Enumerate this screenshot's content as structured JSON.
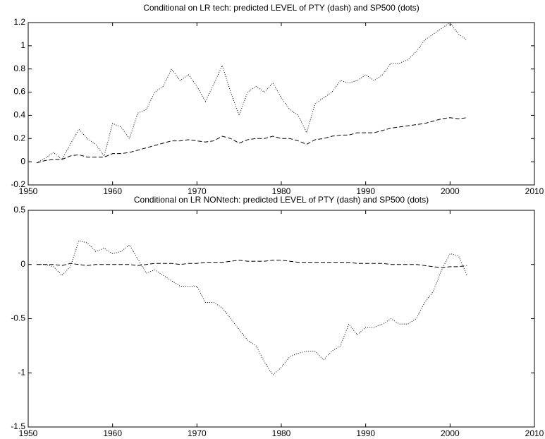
{
  "chart_data": [
    {
      "type": "line",
      "title": "Conditional on LR tech: predicted LEVEL of PTY (dash) and SP500 (dots)",
      "x": [
        1951,
        1952,
        1953,
        1954,
        1955,
        1956,
        1957,
        1958,
        1959,
        1960,
        1961,
        1962,
        1963,
        1964,
        1965,
        1966,
        1967,
        1968,
        1969,
        1970,
        1971,
        1972,
        1973,
        1974,
        1975,
        1976,
        1977,
        1978,
        1979,
        1980,
        1981,
        1982,
        1983,
        1984,
        1985,
        1986,
        1987,
        1988,
        1989,
        1990,
        1991,
        1992,
        1993,
        1994,
        1995,
        1996,
        1997,
        1998,
        1999,
        2000,
        2001,
        2002
      ],
      "series": [
        {
          "color": "#000000",
          "style": "dashed",
          "values": [
            -0.01,
            0.01,
            0.02,
            0.02,
            0.05,
            0.06,
            0.04,
            0.04,
            0.04,
            0.07,
            0.07,
            0.08,
            0.1,
            0.12,
            0.14,
            0.16,
            0.18,
            0.18,
            0.19,
            0.18,
            0.17,
            0.18,
            0.22,
            0.2,
            0.16,
            0.19,
            0.2,
            0.2,
            0.22,
            0.2,
            0.2,
            0.18,
            0.15,
            0.19,
            0.2,
            0.22,
            0.23,
            0.23,
            0.25,
            0.25,
            0.25,
            0.27,
            0.29,
            0.3,
            0.31,
            0.32,
            0.33,
            0.35,
            0.37,
            0.38,
            0.37,
            0.38
          ]
        },
        {
          "color": "#000000",
          "style": "dotted",
          "values": [
            -0.01,
            0.03,
            0.08,
            0.02,
            0.15,
            0.28,
            0.2,
            0.15,
            0.05,
            0.33,
            0.3,
            0.2,
            0.42,
            0.45,
            0.6,
            0.65,
            0.8,
            0.7,
            0.75,
            0.65,
            0.52,
            0.67,
            0.83,
            0.6,
            0.4,
            0.6,
            0.65,
            0.6,
            0.68,
            0.55,
            0.45,
            0.4,
            0.25,
            0.5,
            0.55,
            0.6,
            0.7,
            0.68,
            0.7,
            0.75,
            0.7,
            0.75,
            0.85,
            0.85,
            0.88,
            0.95,
            1.05,
            1.1,
            1.15,
            1.2,
            1.1,
            1.05
          ]
        }
      ],
      "xlim": [
        1950,
        2010
      ],
      "xticks": [
        1950,
        1960,
        1970,
        1980,
        1990,
        2000,
        2010
      ],
      "ylim": [
        -0.2,
        1.2
      ],
      "yticks": [
        -0.2,
        0,
        0.2,
        0.4,
        0.6,
        0.8,
        1,
        1.2
      ],
      "grid": false
    },
    {
      "type": "line",
      "title": "Conditional on LR NONtech: predicted LEVEL of PTY (dash) and SP500 (dots)",
      "x": [
        1951,
        1952,
        1953,
        1954,
        1955,
        1956,
        1957,
        1958,
        1959,
        1960,
        1961,
        1962,
        1963,
        1964,
        1965,
        1966,
        1967,
        1968,
        1969,
        1970,
        1971,
        1972,
        1973,
        1974,
        1975,
        1976,
        1977,
        1978,
        1979,
        1980,
        1981,
        1982,
        1983,
        1984,
        1985,
        1986,
        1987,
        1988,
        1989,
        1990,
        1991,
        1992,
        1993,
        1994,
        1995,
        1996,
        1997,
        1998,
        1999,
        2000,
        2001,
        2002
      ],
      "series": [
        {
          "color": "#000000",
          "style": "dashed",
          "values": [
            0,
            0,
            0,
            -0.01,
            0.01,
            0,
            -0.01,
            0,
            0,
            0,
            0,
            0,
            -0.01,
            0,
            0.01,
            0.01,
            0.01,
            0,
            0.01,
            0.01,
            0.02,
            0.02,
            0.02,
            0.03,
            0.04,
            0.03,
            0.03,
            0.03,
            0.04,
            0.04,
            0.03,
            0.02,
            0.02,
            0.02,
            0.02,
            0.02,
            0.02,
            0.02,
            0.01,
            0.01,
            0.01,
            0.01,
            0,
            0,
            0,
            0,
            -0.01,
            -0.02,
            -0.03,
            -0.02,
            -0.02,
            -0.01
          ]
        },
        {
          "color": "#000000",
          "style": "dotted",
          "values": [
            0,
            0,
            -0.02,
            -0.1,
            -0.02,
            0.22,
            0.2,
            0.12,
            0.15,
            0.1,
            0.12,
            0.18,
            0.05,
            -0.08,
            -0.05,
            -0.1,
            -0.15,
            -0.2,
            -0.2,
            -0.2,
            -0.35,
            -0.35,
            -0.4,
            -0.5,
            -0.6,
            -0.7,
            -0.75,
            -0.9,
            -1.02,
            -0.95,
            -0.85,
            -0.82,
            -0.8,
            -0.8,
            -0.88,
            -0.8,
            -0.75,
            -0.55,
            -0.65,
            -0.58,
            -0.58,
            -0.55,
            -0.5,
            -0.55,
            -0.55,
            -0.5,
            -0.35,
            -0.25,
            -0.05,
            0.1,
            0.08,
            -0.1
          ]
        }
      ],
      "xlim": [
        1950,
        2010
      ],
      "xticks": [
        1950,
        1960,
        1970,
        1980,
        1990,
        2000,
        2010
      ],
      "ylim": [
        -1.5,
        0.5
      ],
      "yticks": [
        -1.5,
        -1,
        -0.5,
        0,
        0.5
      ],
      "grid": false
    }
  ]
}
